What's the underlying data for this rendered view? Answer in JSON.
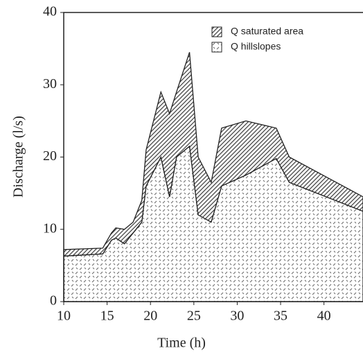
{
  "chart_data": {
    "type": "stacked-area",
    "x_label": "Time (h)",
    "y_label": "Discharge (l/s)",
    "x": [
      10,
      14.5,
      15.5,
      16,
      17,
      18,
      19,
      19.5,
      21.2,
      22.2,
      23,
      24.5,
      25.5,
      27,
      28.2,
      31,
      34.5,
      36,
      44.5
    ],
    "series": [
      {
        "name": "Q saturated area",
        "color": "#444444",
        "values": [
          0.9,
          0.8,
          1.0,
          1.4,
          2.0,
          1.5,
          3.0,
          5.0,
          9.0,
          11.5,
          9.0,
          13.0,
          8.0,
          5.5,
          8.0,
          7.5,
          4.2,
          3.5,
          2.0
        ]
      },
      {
        "name": "Q hillslopes",
        "color": "#666666",
        "values": [
          6.3,
          6.6,
          8.5,
          8.8,
          8.0,
          9.5,
          11.0,
          16.0,
          20.0,
          14.5,
          20.0,
          21.5,
          12.0,
          11.0,
          16.0,
          17.5,
          19.8,
          16.5,
          12.5
        ]
      }
    ],
    "xlim": [
      10,
      44.5
    ],
    "xticks": [
      10,
      15,
      20,
      25,
      30,
      35,
      40
    ],
    "ylim": [
      0,
      40
    ],
    "yticks": [
      0,
      10,
      20,
      30,
      40
    ]
  }
}
